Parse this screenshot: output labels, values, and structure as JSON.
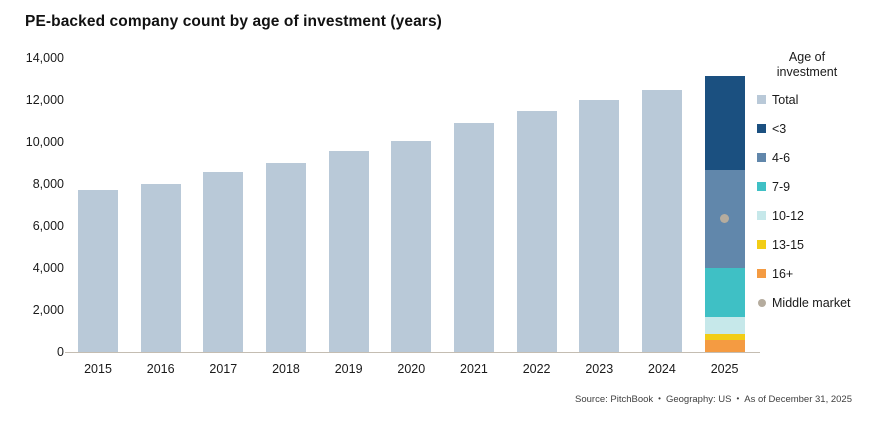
{
  "title": "PE-backed company count by age of investment (years)",
  "legend": {
    "title_line1": "Age of",
    "title_line2": "investment",
    "items": [
      {
        "label": "Total",
        "color": "#b9c9d8",
        "shape": "square"
      },
      {
        "label": "<3",
        "color": "#1b5080",
        "shape": "square"
      },
      {
        "label": "4-6",
        "color": "#6187ab",
        "shape": "square"
      },
      {
        "label": "7-9",
        "color": "#3fc0c5",
        "shape": "square"
      },
      {
        "label": "10-12",
        "color": "#c6e8ea",
        "shape": "square"
      },
      {
        "label": "13-15",
        "color": "#f2cd16",
        "shape": "square"
      },
      {
        "label": "16+",
        "color": "#f49b42",
        "shape": "square"
      },
      {
        "label": "Middle market",
        "color": "#b5ac9e",
        "shape": "circle"
      }
    ]
  },
  "footer": {
    "parts": [
      "Source: PitchBook",
      "Geography: US",
      "As of December 31, 2025"
    ],
    "separator": "•"
  },
  "chart_data": {
    "type": "bar",
    "title": "PE-backed company count by age of investment (years)",
    "categories": [
      "2015",
      "2016",
      "2017",
      "2018",
      "2019",
      "2020",
      "2021",
      "2022",
      "2023",
      "2024",
      "2025"
    ],
    "totals": [
      7700,
      8000,
      8550,
      9000,
      9550,
      10050,
      10900,
      11500,
      12000,
      12500,
      13150
    ],
    "bar_color": "#b9c9d8",
    "stacked": {
      "year": "2025",
      "note": "segments listed top-to-bottom",
      "segments": [
        {
          "label": "<3",
          "value": 4460,
          "color": "#1b5080"
        },
        {
          "label": "4-6",
          "value": 4710,
          "color": "#6187ab"
        },
        {
          "label": "7-9",
          "value": 2320,
          "color": "#3fc0c5"
        },
        {
          "label": "10-12",
          "value": 790,
          "color": "#c6e8ea"
        },
        {
          "label": "13-15",
          "value": 280,
          "color": "#f2cd16"
        },
        {
          "label": "16+",
          "value": 590,
          "color": "#f49b42"
        }
      ]
    },
    "middle_market_marker": {
      "year": "2025",
      "value": 6350,
      "color": "#b5ac9e"
    },
    "ylabel": "",
    "xlabel": "",
    "ylim": [
      0,
      14000
    ],
    "yticks": [
      0,
      2000,
      4000,
      6000,
      8000,
      10000,
      12000,
      14000
    ],
    "grid": false,
    "legend_position": "right"
  }
}
